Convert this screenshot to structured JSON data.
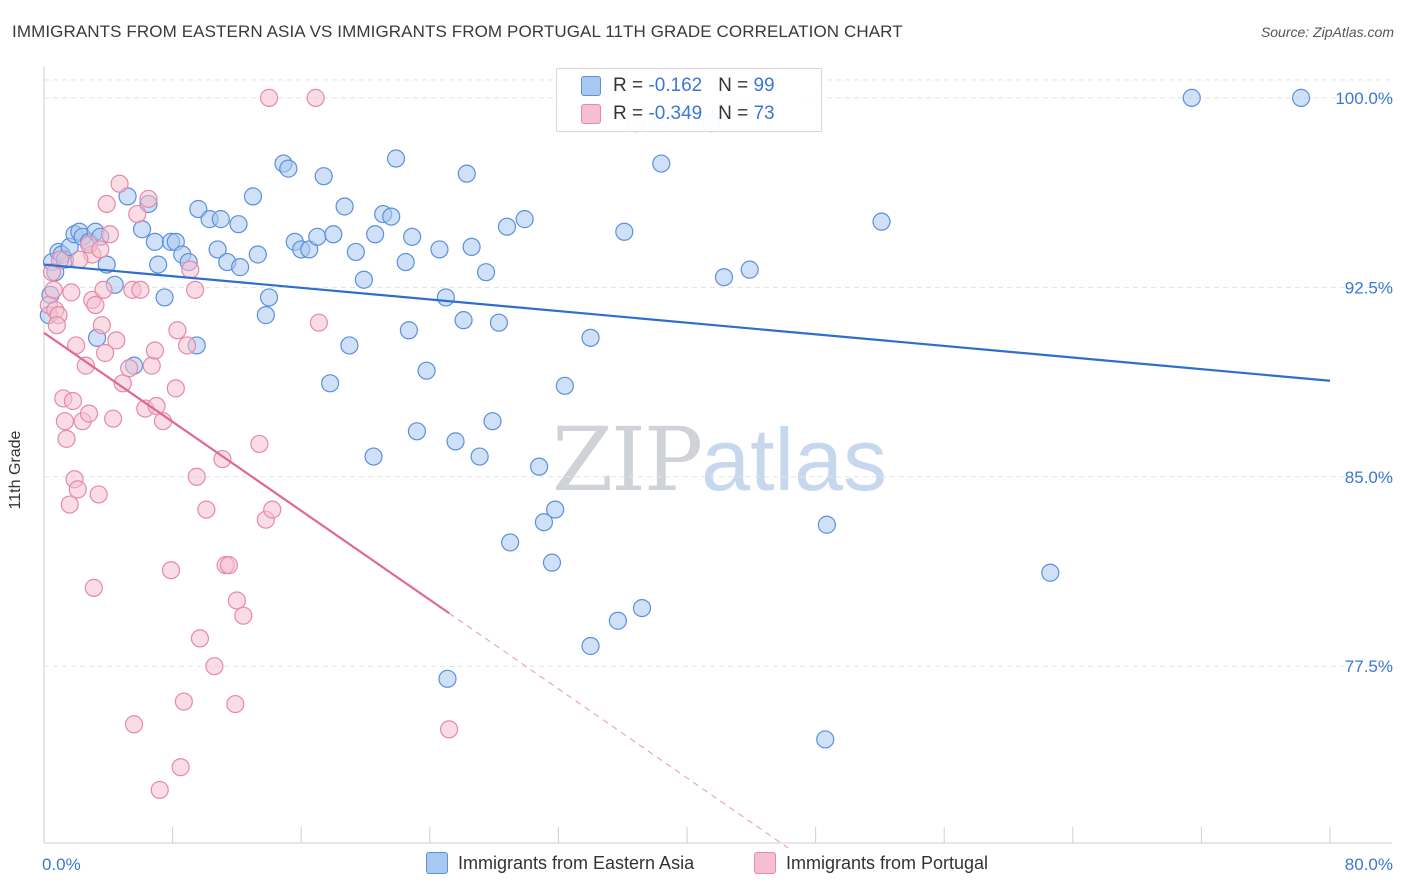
{
  "title": "IMMIGRANTS FROM EASTERN ASIA VS IMMIGRANTS FROM PORTUGAL 11TH GRADE CORRELATION CHART",
  "source": "Source: ZipAtlas.com",
  "watermark": {
    "part1": "ZIP",
    "part2": "atlas"
  },
  "colors": {
    "blue_fill": "#a9c8f0",
    "blue_stroke": "#5a90dc",
    "blue_line": "#2f6fcc",
    "pink_fill": "#f6bfd0",
    "pink_stroke": "#e58aa8",
    "pink_line": "#e06892",
    "axis_label": "#3b78d4",
    "grid": "#e4e4e4"
  },
  "legend_top": [
    {
      "r_label": "R = ",
      "r_value": "-0.162",
      "n_label": "N = ",
      "n_value": "99",
      "color": "blue"
    },
    {
      "r_label": "R = ",
      "r_value": "-0.349",
      "n_label": "N = ",
      "n_value": "73",
      "color": "pink"
    }
  ],
  "legend_bottom": [
    {
      "label": "Immigrants from Eastern Asia",
      "color": "blue"
    },
    {
      "label": "Immigrants from Portugal",
      "color": "pink"
    }
  ],
  "chart_data": {
    "type": "scatter",
    "title": "IMMIGRANTS FROM EASTERN ASIA VS IMMIGRANTS FROM PORTUGAL 11TH GRADE CORRELATION CHART",
    "xlabel": "",
    "ylabel": "11th Grade",
    "xlim": [
      0,
      80
    ],
    "ylim": [
      70.5,
      101.5
    ],
    "x_tick_labels": [
      {
        "value": 0,
        "label": "0.0%"
      },
      {
        "value": 80,
        "label": "80.0%"
      }
    ],
    "y_ticks": [
      {
        "value": 100,
        "label": "100.0%"
      },
      {
        "value": 92.5,
        "label": "92.5%"
      },
      {
        "value": 85,
        "label": "85.0%"
      },
      {
        "value": 77.5,
        "label": "77.5%"
      }
    ],
    "grid": true,
    "legend_position": "top-center",
    "series": [
      {
        "name": "Immigrants from Eastern Asia",
        "color": "blue",
        "trend": {
          "x": [
            0,
            80
          ],
          "y": [
            93.4,
            88.8
          ]
        },
        "points": [
          [
            0.3,
            91.4
          ],
          [
            0.4,
            92.2
          ],
          [
            0.5,
            93.5
          ],
          [
            0.7,
            93.1
          ],
          [
            0.9,
            93.9
          ],
          [
            1.1,
            93.8
          ],
          [
            1.3,
            93.6
          ],
          [
            1.6,
            94.1
          ],
          [
            1.9,
            94.6
          ],
          [
            2.2,
            94.7
          ],
          [
            2.4,
            94.5
          ],
          [
            2.8,
            94.3
          ],
          [
            3.2,
            94.7
          ],
          [
            3.5,
            94.5
          ],
          [
            3.3,
            90.5
          ],
          [
            3.9,
            93.4
          ],
          [
            4.4,
            92.6
          ],
          [
            5.2,
            96.1
          ],
          [
            5.6,
            89.4
          ],
          [
            6.1,
            94.8
          ],
          [
            6.5,
            95.8
          ],
          [
            6.9,
            94.3
          ],
          [
            7.1,
            93.4
          ],
          [
            7.5,
            92.1
          ],
          [
            7.9,
            94.3
          ],
          [
            8.2,
            94.3
          ],
          [
            8.6,
            93.8
          ],
          [
            9.0,
            93.5
          ],
          [
            9.5,
            90.2
          ],
          [
            9.6,
            95.6
          ],
          [
            10.3,
            95.2
          ],
          [
            10.8,
            94.0
          ],
          [
            11.0,
            95.2
          ],
          [
            11.4,
            93.5
          ],
          [
            12.1,
            95.0
          ],
          [
            12.2,
            93.3
          ],
          [
            13.0,
            96.1
          ],
          [
            13.3,
            93.8
          ],
          [
            13.8,
            91.4
          ],
          [
            14.0,
            92.1
          ],
          [
            14.9,
            97.4
          ],
          [
            15.2,
            97.2
          ],
          [
            15.6,
            94.3
          ],
          [
            16.0,
            94.0
          ],
          [
            16.5,
            94.0
          ],
          [
            17.0,
            94.5
          ],
          [
            17.4,
            96.9
          ],
          [
            17.8,
            88.7
          ],
          [
            18.0,
            94.6
          ],
          [
            18.7,
            95.7
          ],
          [
            19.0,
            90.2
          ],
          [
            19.4,
            93.9
          ],
          [
            19.9,
            92.8
          ],
          [
            20.5,
            85.8
          ],
          [
            20.6,
            94.6
          ],
          [
            21.1,
            95.4
          ],
          [
            21.6,
            95.3
          ],
          [
            21.9,
            97.6
          ],
          [
            22.5,
            93.5
          ],
          [
            22.7,
            90.8
          ],
          [
            22.9,
            94.5
          ],
          [
            23.2,
            86.8
          ],
          [
            23.8,
            89.2
          ],
          [
            24.6,
            94.0
          ],
          [
            25.0,
            92.1
          ],
          [
            25.1,
            77.0
          ],
          [
            25.6,
            86.4
          ],
          [
            26.1,
            91.2
          ],
          [
            26.3,
            97.0
          ],
          [
            26.6,
            94.1
          ],
          [
            27.1,
            85.8
          ],
          [
            27.5,
            93.1
          ],
          [
            27.9,
            87.2
          ],
          [
            28.3,
            91.1
          ],
          [
            28.8,
            94.9
          ],
          [
            29.0,
            82.4
          ],
          [
            29.9,
            95.2
          ],
          [
            30.8,
            85.4
          ],
          [
            31.1,
            83.2
          ],
          [
            31.6,
            81.6
          ],
          [
            31.8,
            83.7
          ],
          [
            32.4,
            88.6
          ],
          [
            34.0,
            90.5
          ],
          [
            34.0,
            78.3
          ],
          [
            35.7,
            79.3
          ],
          [
            36.1,
            94.7
          ],
          [
            36.8,
            99.0
          ],
          [
            37.2,
            79.8
          ],
          [
            38.4,
            97.4
          ],
          [
            41.5,
            99.0
          ],
          [
            42.3,
            92.9
          ],
          [
            43.9,
            93.2
          ],
          [
            48.6,
            74.6
          ],
          [
            48.7,
            83.1
          ],
          [
            52.1,
            95.1
          ],
          [
            62.6,
            81.2
          ],
          [
            71.4,
            100.0
          ],
          [
            78.2,
            100.0
          ],
          [
            38.5,
            99.2
          ]
        ]
      },
      {
        "name": "Immigrants from Portugal",
        "color": "pink",
        "trend": {
          "x": [
            0,
            25.2
          ],
          "y": [
            90.7,
            79.6
          ]
        },
        "trend_dashed": {
          "x": [
            25.2,
            46.3
          ],
          "y": [
            79.6,
            70.3
          ]
        },
        "points": [
          [
            0.3,
            91.8
          ],
          [
            0.5,
            93.1
          ],
          [
            0.6,
            92.4
          ],
          [
            0.7,
            91.6
          ],
          [
            0.9,
            91.4
          ],
          [
            1.0,
            93.6
          ],
          [
            1.3,
            87.2
          ],
          [
            1.4,
            86.5
          ],
          [
            1.6,
            83.9
          ],
          [
            1.7,
            92.3
          ],
          [
            1.9,
            84.9
          ],
          [
            2.0,
            90.2
          ],
          [
            2.1,
            84.5
          ],
          [
            2.4,
            87.2
          ],
          [
            2.6,
            89.4
          ],
          [
            2.8,
            87.5
          ],
          [
            3.0,
            92.0
          ],
          [
            3.0,
            93.8
          ],
          [
            3.1,
            80.6
          ],
          [
            3.2,
            91.8
          ],
          [
            3.4,
            84.3
          ],
          [
            3.6,
            91.0
          ],
          [
            3.7,
            92.4
          ],
          [
            3.9,
            95.8
          ],
          [
            4.1,
            94.6
          ],
          [
            4.3,
            87.3
          ],
          [
            4.5,
            90.4
          ],
          [
            4.7,
            96.6
          ],
          [
            4.9,
            88.7
          ],
          [
            5.3,
            89.3
          ],
          [
            5.5,
            92.4
          ],
          [
            5.6,
            75.2
          ],
          [
            5.8,
            95.4
          ],
          [
            6.0,
            92.4
          ],
          [
            6.3,
            87.7
          ],
          [
            6.5,
            96.0
          ],
          [
            6.7,
            89.4
          ],
          [
            6.9,
            90.0
          ],
          [
            7.0,
            87.8
          ],
          [
            7.2,
            72.6
          ],
          [
            7.4,
            87.2
          ],
          [
            7.9,
            81.3
          ],
          [
            8.2,
            88.5
          ],
          [
            8.3,
            90.8
          ],
          [
            8.5,
            73.5
          ],
          [
            8.7,
            76.1
          ],
          [
            8.9,
            90.2
          ],
          [
            9.1,
            93.2
          ],
          [
            9.4,
            92.4
          ],
          [
            9.5,
            85.0
          ],
          [
            9.7,
            78.6
          ],
          [
            10.1,
            83.7
          ],
          [
            10.6,
            77.5
          ],
          [
            11.1,
            85.7
          ],
          [
            11.3,
            81.5
          ],
          [
            11.5,
            81.5
          ],
          [
            11.9,
            76.0
          ],
          [
            12.0,
            80.1
          ],
          [
            12.4,
            79.5
          ],
          [
            13.4,
            86.3
          ],
          [
            13.8,
            83.3
          ],
          [
            14.2,
            83.7
          ],
          [
            17.1,
            91.1
          ],
          [
            14.0,
            100.0
          ],
          [
            16.9,
            100.0
          ],
          [
            25.2,
            75.0
          ],
          [
            2.8,
            94.2
          ],
          [
            3.8,
            89.9
          ],
          [
            2.2,
            93.6
          ],
          [
            1.2,
            88.1
          ],
          [
            0.8,
            91.0
          ],
          [
            1.8,
            88.0
          ],
          [
            3.5,
            94.0
          ]
        ]
      }
    ]
  }
}
